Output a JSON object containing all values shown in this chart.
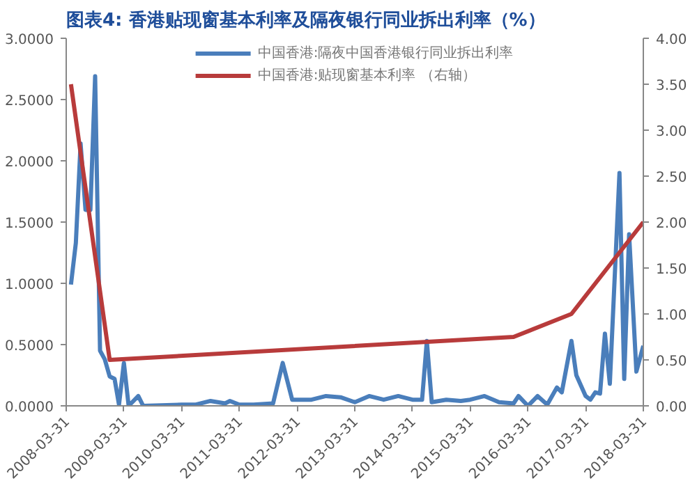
{
  "chart_data": {
    "type": "line",
    "title": "图表4:   香港贴现窗基本利率及隔夜银行同业拆出利率（%）",
    "legend": "top",
    "grid": false,
    "xlim": [
      "2008-03-31",
      "2018-03-31"
    ],
    "xticks": [
      "2008-03-31",
      "2009-03-31",
      "2010-03-31",
      "2011-03-31",
      "2012-03-31",
      "2013-03-31",
      "2014-03-31",
      "2015-03-31",
      "2016-03-31",
      "2017-03-31",
      "2018-03-31"
    ],
    "ylim": [
      0,
      3
    ],
    "yticks": [
      {
        "value": 0,
        "label": "0.0000"
      },
      {
        "value": 0.5,
        "label": "0.5000"
      },
      {
        "value": 1,
        "label": "1.0000"
      },
      {
        "value": 1.5,
        "label": "1.5000"
      },
      {
        "value": 2,
        "label": "2.0000"
      },
      {
        "value": 2.5,
        "label": "2.5000"
      },
      {
        "value": 3,
        "label": "3.0000"
      }
    ],
    "y2lim": [
      0,
      4
    ],
    "y2ticks": [
      {
        "value": 0,
        "label": "0.00"
      },
      {
        "value": 0.5,
        "label": "0.50"
      },
      {
        "value": 1,
        "label": "1.00"
      },
      {
        "value": 1.5,
        "label": "1.50"
      },
      {
        "value": 2,
        "label": "2.00"
      },
      {
        "value": 2.5,
        "label": "2.50"
      },
      {
        "value": 3,
        "label": "3.00"
      },
      {
        "value": 3.5,
        "label": "3.50"
      },
      {
        "value": 4,
        "label": "4.00"
      }
    ],
    "series": [
      {
        "name": "中国香港:隔夜中国香港银行同业拆出利率",
        "color": "#4a7ebb",
        "x": [
          "2008-04-30",
          "2008-05-31",
          "2008-06-30",
          "2008-07-31",
          "2008-08-31",
          "2008-09-30",
          "2008-10-31",
          "2008-11-30",
          "2008-12-31",
          "2009-01-31",
          "2009-02-28",
          "2009-03-31",
          "2009-04-30",
          "2009-06-30",
          "2009-07-31",
          "2010-03-31",
          "2010-06-30",
          "2010-09-30",
          "2010-12-31",
          "2011-01-31",
          "2011-03-31",
          "2011-06-30",
          "2011-10-31",
          "2011-12-31",
          "2012-02-29",
          "2012-06-30",
          "2012-09-30",
          "2012-12-31",
          "2013-03-31",
          "2013-06-30",
          "2013-09-30",
          "2013-12-31",
          "2014-03-31",
          "2014-05-31",
          "2014-06-30",
          "2014-07-31",
          "2014-10-31",
          "2015-01-31",
          "2015-03-31",
          "2015-06-30",
          "2015-09-30",
          "2015-12-31",
          "2016-01-31",
          "2016-03-31",
          "2016-05-31",
          "2016-07-31",
          "2016-09-30",
          "2016-10-31",
          "2016-12-31",
          "2017-01-31",
          "2017-03-31",
          "2017-04-30",
          "2017-05-31",
          "2017-06-30",
          "2017-07-31",
          "2017-08-31",
          "2017-10-31",
          "2017-11-30",
          "2017-12-31",
          "2018-02-15",
          "2018-03-31"
        ],
        "values": [
          0.99,
          1.33,
          2.14,
          1.6,
          1.6,
          2.69,
          0.45,
          0.38,
          0.24,
          0.22,
          0.01,
          0.35,
          0.0,
          0.08,
          0.0,
          0.01,
          0.01,
          0.04,
          0.02,
          0.04,
          0.01,
          0.01,
          0.02,
          0.35,
          0.05,
          0.05,
          0.08,
          0.07,
          0.03,
          0.08,
          0.05,
          0.08,
          0.05,
          0.05,
          0.53,
          0.03,
          0.05,
          0.04,
          0.05,
          0.08,
          0.03,
          0.02,
          0.08,
          0.0,
          0.08,
          0.01,
          0.15,
          0.11,
          0.53,
          0.25,
          0.08,
          0.05,
          0.11,
          0.1,
          0.59,
          0.18,
          1.9,
          0.22,
          1.4,
          0.28,
          0.49
        ]
      },
      {
        "name": "中国香港:贴现窗基本利率 （右轴）",
        "color": "#b83b3b",
        "axis": "y2",
        "x": [
          "2008-04-30",
          "2008-12-31",
          "2015-12-31",
          "2016-12-31",
          "2018-03-31"
        ],
        "values": [
          3.5,
          0.5,
          0.75,
          1.0,
          2.0
        ]
      }
    ]
  }
}
